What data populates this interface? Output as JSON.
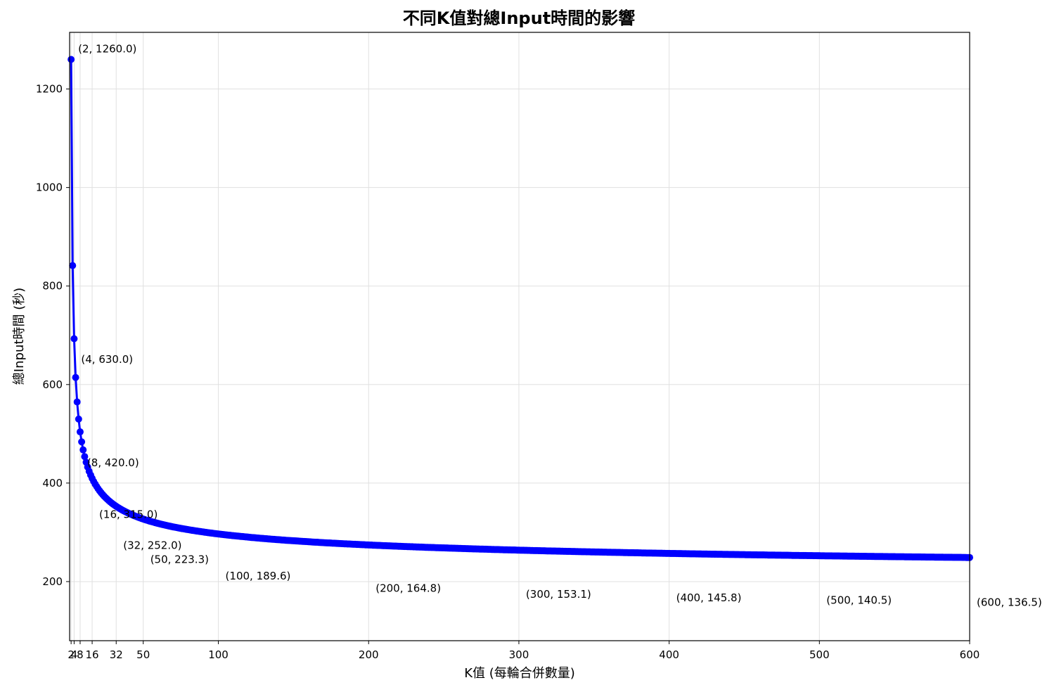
{
  "chart_data": {
    "type": "line",
    "title": "不同K值對總Input時間的影響",
    "xlabel": "K值 (每輪合併數量)",
    "ylabel": "總Input時間 (秒)",
    "xlim": [
      1,
      600
    ],
    "ylim": [
      80,
      1315
    ],
    "x_ticks": [
      2,
      4,
      8,
      16,
      32,
      50,
      100,
      200,
      300,
      400,
      500,
      600
    ],
    "y_ticks": [
      200,
      400,
      600,
      800,
      1000,
      1200
    ],
    "grid": true,
    "color": "#0000ff",
    "series": [
      {
        "k_range": [
          2,
          600
        ],
        "note": "",
        "values": []
      }
    ],
    "annotations": [
      {
        "x": 2,
        "y": 1260.0,
        "label": "(2, 1260.0)"
      },
      {
        "x": 4,
        "y": 630.0,
        "label": "(4, 630.0)"
      },
      {
        "x": 8,
        "y": 420.0,
        "label": "(8, 420.0)"
      },
      {
        "x": 16,
        "y": 315.0,
        "label": "(16, 315.0)"
      },
      {
        "x": 32,
        "y": 252.0,
        "label": "(32, 252.0)"
      },
      {
        "x": 50,
        "y": 223.3,
        "label": "(50, 223.3)"
      },
      {
        "x": 100,
        "y": 189.6,
        "label": "(100, 189.6)"
      },
      {
        "x": 200,
        "y": 164.8,
        "label": "(200, 164.8)"
      },
      {
        "x": 300,
        "y": 153.1,
        "label": "(300, 153.1)"
      },
      {
        "x": 400,
        "y": 145.8,
        "label": "(400, 145.8)"
      },
      {
        "x": 500,
        "y": 140.5,
        "label": "(500, 140.5)"
      },
      {
        "x": 600,
        "y": 136.5,
        "label": "(600, 136.5)"
      }
    ]
  }
}
